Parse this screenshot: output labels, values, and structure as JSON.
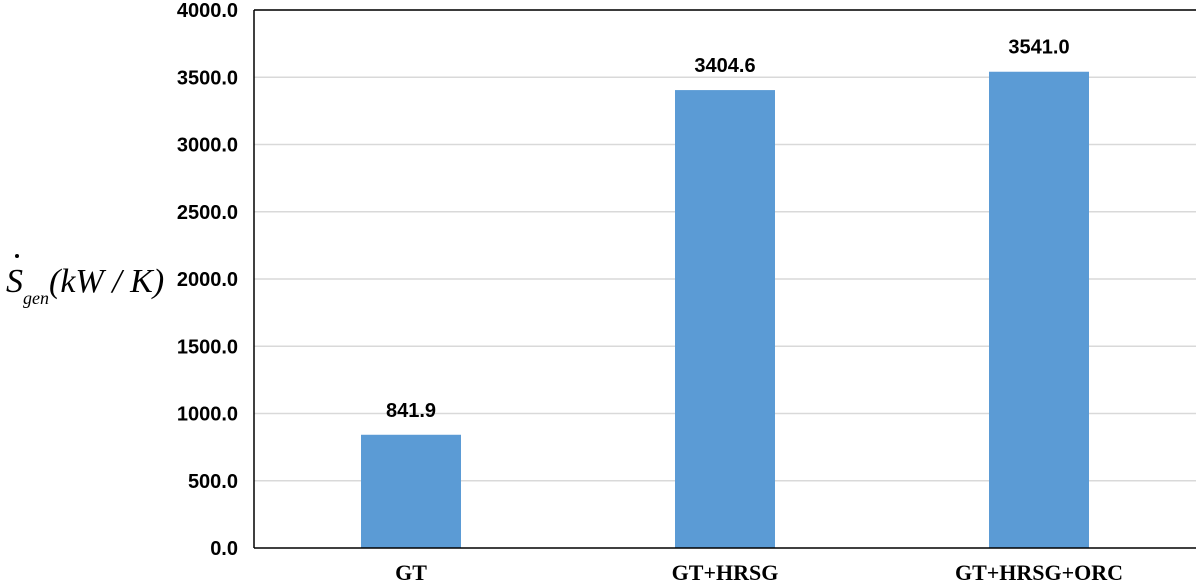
{
  "chart_data": {
    "type": "bar",
    "categories": [
      "GT",
      "GT+HRSG",
      "GT+HRSG+ORC"
    ],
    "values": [
      841.9,
      3404.6,
      3541.0
    ],
    "data_labels": [
      "841.9",
      "3404.6",
      "3541.0"
    ],
    "ylabel": {
      "symbol": "S",
      "subscript": "gen",
      "units": "(kW / K)"
    },
    "ylim": [
      0,
      4000
    ],
    "yticks": [
      0,
      500,
      1000,
      1500,
      2000,
      2500,
      3000,
      3500,
      4000
    ],
    "ytick_labels": [
      "0.0",
      "500.0",
      "1000.0",
      "1500.0",
      "2000.0",
      "2500.0",
      "3000.0",
      "3500.0",
      "4000.0"
    ],
    "grid": true,
    "colors": {
      "bar": "#5b9bd5",
      "grid": "#d9d9d9",
      "axis": "#000000"
    }
  }
}
